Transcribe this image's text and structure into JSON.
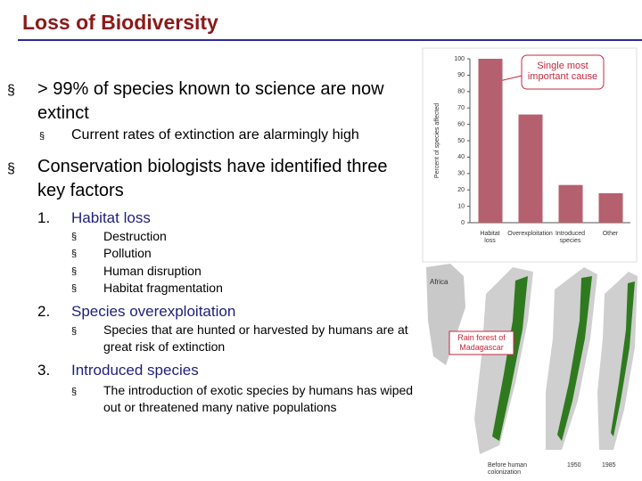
{
  "title": "Loss of Biodiversity",
  "marker": "§",
  "bullets": [
    {
      "text": "> 99% of species known to science are now extinct",
      "sub": [
        "Current rates of extinction are alarmingly high"
      ]
    },
    {
      "text": "Conservation biologists have identified three key factors",
      "factors": [
        {
          "number": "1.",
          "title": "Habitat loss",
          "sub": [
            "Destruction",
            "Pollution",
            "Human disruption",
            "Habitat fragmentation"
          ]
        },
        {
          "number": "2.",
          "title": "Species overexploitation",
          "sub": [
            "Species that are hunted or harvested by humans are at great risk of extinction"
          ]
        },
        {
          "number": "3.",
          "title": "Introduced species",
          "sub": [
            "The introduction of exotic species by humans has wiped out or threatened many native populations"
          ]
        }
      ]
    }
  ],
  "chart_data": {
    "type": "bar",
    "y_label": "Percent of species affected",
    "annotation": "Single most important cause",
    "categories": [
      "Habitat loss",
      "Overexploitation",
      "Introduced species",
      "Other"
    ],
    "values": [
      100,
      66,
      23,
      18
    ],
    "color": "#b5606e",
    "ylim": [
      0,
      100
    ],
    "yticks": [
      0,
      10,
      20,
      30,
      40,
      50,
      60,
      70,
      80,
      90,
      100
    ]
  },
  "map": {
    "africa": "Africa",
    "rainforest": "Rain forest of Madagascar",
    "panels": [
      "Before human colonization",
      "1950",
      "1985"
    ]
  }
}
